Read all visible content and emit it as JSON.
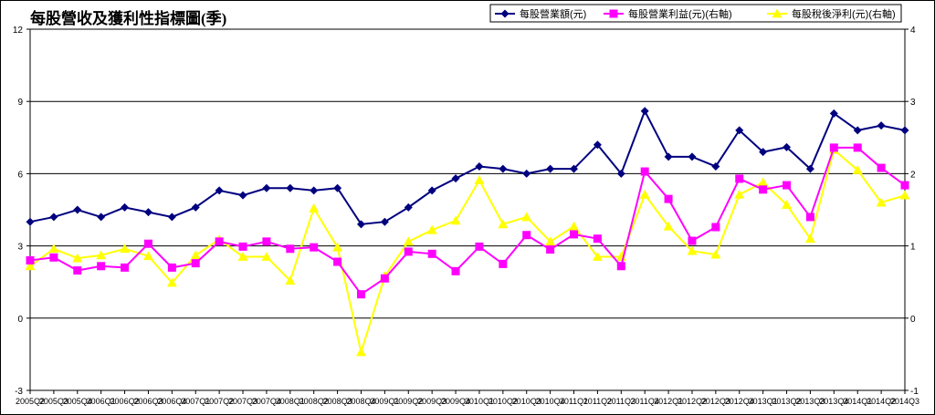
{
  "chart_data": {
    "type": "line",
    "title": "每股營收及獲利性指標圖(季)",
    "grid": true,
    "legend_position": "top-right",
    "y_left": {
      "min": -3,
      "max": 12,
      "ticks": [
        -3,
        0,
        3,
        6,
        9,
        12
      ]
    },
    "y_right": {
      "min": -1,
      "max": 4,
      "ticks": [
        -1,
        0,
        1,
        2,
        3,
        4
      ]
    },
    "categories": [
      "2005Q2",
      "2005Q3",
      "2005Q4",
      "2006Q1",
      "2006Q2",
      "2006Q3",
      "2006Q4",
      "2007Q1",
      "2007Q2",
      "2007Q3",
      "2007Q4",
      "2008Q1",
      "2008Q2",
      "2008Q3",
      "2008Q4",
      "2009Q1",
      "2009Q2",
      "2009Q3",
      "2009Q4",
      "2010Q1",
      "2010Q2",
      "2010Q3",
      "2010Q4",
      "2011Q1",
      "2011Q2",
      "2011Q3",
      "2011Q4",
      "2012Q1",
      "2012Q2",
      "2012Q3",
      "2012Q4",
      "2013Q1",
      "2013Q2",
      "2013Q3",
      "2013Q4",
      "2014Q1",
      "2014Q2",
      "2014Q3"
    ],
    "series": [
      {
        "name": "每股營業額(元)",
        "axis": "left",
        "color": "#00007F",
        "marker": "diamond",
        "values": [
          4.0,
          4.2,
          4.5,
          4.2,
          4.6,
          4.4,
          4.2,
          4.6,
          5.3,
          5.1,
          5.4,
          5.4,
          5.3,
          5.4,
          3.9,
          4.0,
          4.6,
          5.3,
          5.8,
          6.3,
          6.2,
          6.0,
          6.2,
          6.2,
          7.2,
          6.0,
          8.6,
          6.7,
          6.7,
          6.3,
          7.8,
          6.9,
          7.1,
          6.2,
          8.5,
          7.8,
          8.0,
          7.8
        ]
      },
      {
        "name": "每股營業利益(元)(右軸)",
        "axis": "right",
        "color": "#FF00FF",
        "marker": "square",
        "values": [
          0.8,
          0.84,
          0.66,
          0.72,
          0.7,
          1.03,
          0.7,
          0.76,
          1.06,
          0.99,
          1.06,
          0.96,
          0.98,
          0.78,
          0.33,
          0.55,
          0.92,
          0.89,
          0.65,
          0.99,
          0.75,
          1.15,
          0.95,
          1.16,
          1.1,
          0.72,
          2.03,
          1.65,
          1.07,
          1.26,
          1.93,
          1.78,
          1.84,
          1.4,
          2.36,
          2.36,
          2.08,
          1.84
        ]
      },
      {
        "name": "每股稅後淨利(元)(右軸)",
        "axis": "right",
        "color": "#FFFF00",
        "marker": "triangle",
        "values": [
          0.72,
          0.96,
          0.83,
          0.87,
          0.96,
          0.86,
          0.49,
          0.87,
          1.09,
          0.85,
          0.85,
          0.52,
          1.52,
          0.98,
          -0.47,
          0.58,
          1.06,
          1.22,
          1.35,
          1.91,
          1.3,
          1.4,
          1.06,
          1.27,
          0.85,
          0.85,
          1.71,
          1.27,
          0.93,
          0.88,
          1.71,
          1.88,
          1.57,
          1.1,
          2.33,
          2.05,
          1.6,
          1.7
        ]
      }
    ]
  }
}
